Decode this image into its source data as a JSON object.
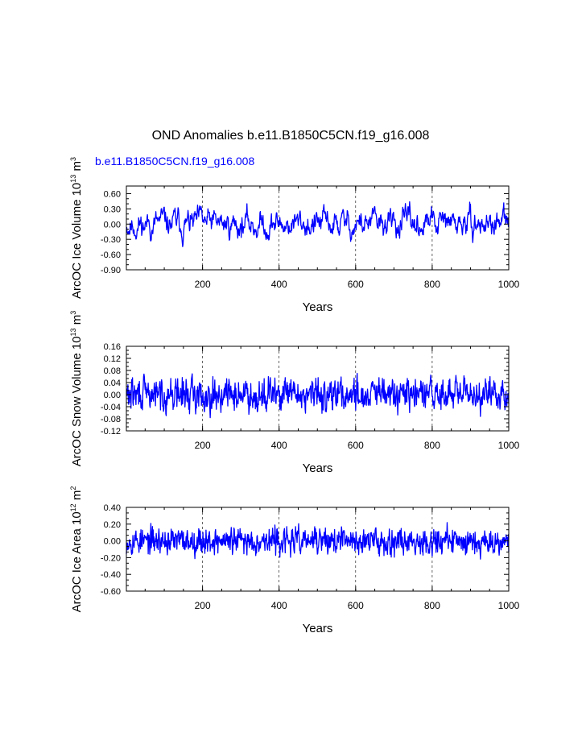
{
  "title": "OND Anomalies b.e11.B1850C5CN.f19_g16.008",
  "subtitle": "b.e11.B1850C5CN.f19_g16.008",
  "colors": {
    "line": "#0000ff",
    "subtitle": "#0000ff",
    "axis": "#000000"
  },
  "chart_data": [
    {
      "type": "line",
      "title": "OND Anomalies b.e11.B1850C5CN.f19_g16.008",
      "subtitle": "b.e11.B1850C5CN.f19_g16.008",
      "xlabel": "Years",
      "ylabel_main": "ArcOC Ice Volume 10",
      "ylabel_exp": "13",
      "ylabel_unit": " m",
      "ylabel_unit_exp": "3",
      "xlim": [
        1,
        1000
      ],
      "ylim": [
        -0.9,
        0.75
      ],
      "xticks": [
        "200",
        "400",
        "600",
        "800",
        "1000"
      ],
      "yticks": [
        "0.60",
        "0.30",
        "0.00",
        "-0.30",
        "-0.60",
        "-0.90"
      ],
      "ytick_values": [
        0.6,
        0.3,
        0.0,
        -0.3,
        -0.6,
        -0.9
      ],
      "series": [
        {
          "name": "ArcOC Ice Volume",
          "amplitude": 0.22,
          "persistence": 0.82,
          "seed": 11
        }
      ]
    },
    {
      "type": "line",
      "xlabel": "Years",
      "ylabel_main": "ArcOC Snow Volume 10",
      "ylabel_exp": "13",
      "ylabel_unit": " m",
      "ylabel_unit_exp": "3",
      "xlim": [
        1,
        1000
      ],
      "ylim": [
        -0.12,
        0.16
      ],
      "xticks": [
        "200",
        "400",
        "600",
        "800",
        "1000"
      ],
      "yticks": [
        "0.16",
        "0.12",
        "0.08",
        "0.04",
        "0.00",
        "-0.04",
        "-0.08",
        "-0.12"
      ],
      "ytick_values": [
        0.16,
        0.12,
        0.08,
        0.04,
        0.0,
        -0.04,
        -0.08,
        -0.12
      ],
      "series": [
        {
          "name": "ArcOC Snow Volume",
          "amplitude": 0.038,
          "persistence": 0.35,
          "seed": 29
        }
      ]
    },
    {
      "type": "line",
      "xlabel": "Years",
      "ylabel_main": "ArcOC Ice Area 10",
      "ylabel_exp": "12",
      "ylabel_unit": " m",
      "ylabel_unit_exp": "2",
      "xlim": [
        1,
        1000
      ],
      "ylim": [
        -0.6,
        0.4
      ],
      "xticks": [
        "200",
        "400",
        "600",
        "800",
        "1000"
      ],
      "yticks": [
        "0.40",
        "0.20",
        "0.00",
        "-0.20",
        "-0.40",
        "-0.60"
      ],
      "ytick_values": [
        0.4,
        0.2,
        0.0,
        -0.2,
        -0.4,
        -0.6
      ],
      "series": [
        {
          "name": "ArcOC Ice Area",
          "amplitude": 0.11,
          "persistence": 0.25,
          "seed": 53
        }
      ]
    }
  ]
}
